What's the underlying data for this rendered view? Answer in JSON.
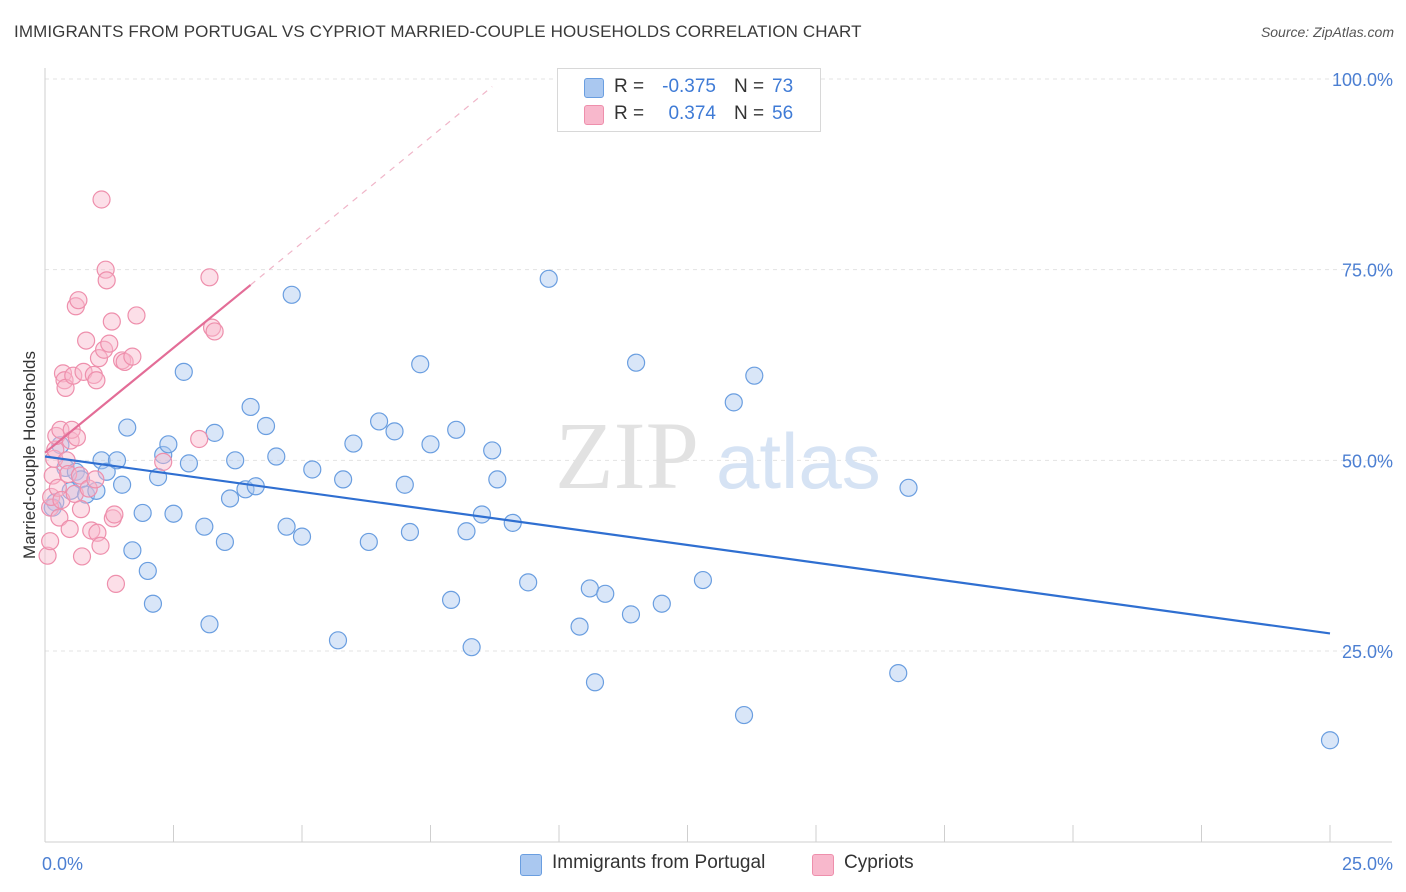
{
  "title": "IMMIGRANTS FROM PORTUGAL VS CYPRIOT MARRIED-COUPLE HOUSEHOLDS CORRELATION CHART",
  "source": "Source: ZipAtlas.com",
  "watermark": {
    "zip": "ZIP",
    "atlas": "atlas"
  },
  "legend": {
    "r_label": "R =",
    "n_label": "N =",
    "entries": [
      {
        "r": "-0.375",
        "n": "73",
        "color": "#aac8f0"
      },
      {
        "r": "0.374",
        "n": "56",
        "color": "#f8b8cc"
      }
    ]
  },
  "chart_data": {
    "type": "scatter",
    "title": "IMMIGRANTS FROM PORTUGAL VS CYPRIOT MARRIED-COUPLE HOUSEHOLDS CORRELATION CHART",
    "xlabel": "",
    "ylabel": "Married-couple Households",
    "xlim": [
      0,
      25
    ],
    "ylim": [
      0,
      105
    ],
    "x_tick_labels": [
      "0.0%",
      "25.0%"
    ],
    "y_tick_labels": [
      "100.0%",
      "75.0%",
      "50.0%",
      "25.0%"
    ],
    "y_tick_values": [
      100,
      75,
      50,
      25
    ],
    "colors": {
      "blue_fill": "#aac8f0",
      "blue_stroke": "#6a9ee0",
      "blue_line": "#2f6fd1",
      "pink_fill": "#f8b8cc",
      "pink_stroke": "#ee8fac",
      "pink_line": "#e36d97",
      "axis_text": "#4c7fd2"
    },
    "series": [
      {
        "name": "Immigrants from Portugal",
        "r": -0.375,
        "n": 73,
        "trend": {
          "x": [
            0.0,
            25.0
          ],
          "y": [
            50.5,
            27.3
          ],
          "dashed": false
        },
        "points": [
          [
            0.2,
            44.5
          ],
          [
            0.3,
            52.0
          ],
          [
            0.4,
            49.0
          ],
          [
            0.5,
            46.0
          ],
          [
            0.6,
            48.5
          ],
          [
            0.7,
            47.5
          ],
          [
            0.8,
            45.5
          ],
          [
            1.0,
            46.0
          ],
          [
            1.1,
            50.0
          ],
          [
            1.2,
            48.5
          ],
          [
            1.4,
            50.0
          ],
          [
            1.5,
            46.8
          ],
          [
            1.6,
            54.3
          ],
          [
            1.7,
            38.2
          ],
          [
            1.9,
            43.1
          ],
          [
            2.0,
            35.5
          ],
          [
            2.1,
            31.2
          ],
          [
            2.2,
            47.8
          ],
          [
            2.3,
            50.7
          ],
          [
            2.4,
            52.1
          ],
          [
            2.5,
            43.0
          ],
          [
            2.7,
            61.6
          ],
          [
            2.8,
            49.6
          ],
          [
            3.1,
            41.3
          ],
          [
            3.2,
            28.5
          ],
          [
            3.3,
            53.6
          ],
          [
            3.5,
            39.3
          ],
          [
            3.6,
            45.0
          ],
          [
            3.7,
            50.0
          ],
          [
            3.9,
            46.2
          ],
          [
            4.0,
            57.0
          ],
          [
            4.1,
            46.6
          ],
          [
            4.3,
            54.5
          ],
          [
            4.5,
            50.5
          ],
          [
            4.7,
            41.3
          ],
          [
            4.8,
            71.7
          ],
          [
            5.0,
            40.0
          ],
          [
            5.2,
            48.8
          ],
          [
            5.7,
            26.4
          ],
          [
            5.8,
            47.5
          ],
          [
            6.0,
            52.2
          ],
          [
            6.3,
            39.3
          ],
          [
            6.5,
            55.1
          ],
          [
            6.8,
            53.8
          ],
          [
            7.0,
            46.8
          ],
          [
            7.1,
            40.6
          ],
          [
            7.3,
            62.6
          ],
          [
            7.5,
            52.1
          ],
          [
            7.9,
            31.7
          ],
          [
            8.0,
            54.0
          ],
          [
            8.2,
            40.7
          ],
          [
            8.3,
            25.5
          ],
          [
            8.5,
            42.9
          ],
          [
            8.7,
            51.3
          ],
          [
            8.8,
            47.5
          ],
          [
            9.1,
            41.8
          ],
          [
            9.4,
            34.0
          ],
          [
            9.8,
            73.8
          ],
          [
            10.4,
            28.2
          ],
          [
            10.6,
            33.2
          ],
          [
            10.7,
            20.9
          ],
          [
            10.9,
            32.5
          ],
          [
            11.4,
            29.8
          ],
          [
            11.5,
            62.8
          ],
          [
            12.0,
            31.2
          ],
          [
            12.8,
            34.3
          ],
          [
            13.4,
            57.6
          ],
          [
            13.6,
            16.6
          ],
          [
            13.8,
            61.1
          ],
          [
            16.6,
            22.1
          ],
          [
            16.8,
            46.4
          ],
          [
            25.0,
            13.3
          ],
          [
            0.15,
            43.8
          ]
        ]
      },
      {
        "name": "Cypriots",
        "r": 0.374,
        "n": 56,
        "trend": {
          "x": [
            0.0,
            4.0
          ],
          "y": [
            51.0,
            73.0
          ],
          "dashed": false,
          "extension": {
            "x": [
              4.0,
              8.7
            ],
            "y": [
              73.0,
              99.0
            ],
            "dashed": true
          }
        },
        "points": [
          [
            0.05,
            37.5
          ],
          [
            0.1,
            39.4
          ],
          [
            0.1,
            43.8
          ],
          [
            0.12,
            45.2
          ],
          [
            0.15,
            48.0
          ],
          [
            0.18,
            50.2
          ],
          [
            0.2,
            51.4
          ],
          [
            0.22,
            53.2
          ],
          [
            0.25,
            46.4
          ],
          [
            0.28,
            42.5
          ],
          [
            0.3,
            54.0
          ],
          [
            0.32,
            44.8
          ],
          [
            0.35,
            61.4
          ],
          [
            0.38,
            60.5
          ],
          [
            0.4,
            59.5
          ],
          [
            0.42,
            50.0
          ],
          [
            0.45,
            48.2
          ],
          [
            0.48,
            41.0
          ],
          [
            0.5,
            52.6
          ],
          [
            0.52,
            54.0
          ],
          [
            0.55,
            61.1
          ],
          [
            0.58,
            45.6
          ],
          [
            0.6,
            70.2
          ],
          [
            0.62,
            53.0
          ],
          [
            0.65,
            71.0
          ],
          [
            0.68,
            48.0
          ],
          [
            0.7,
            43.6
          ],
          [
            0.72,
            37.4
          ],
          [
            0.75,
            61.6
          ],
          [
            0.8,
            65.7
          ],
          [
            0.85,
            46.3
          ],
          [
            0.9,
            40.8
          ],
          [
            0.95,
            61.2
          ],
          [
            0.98,
            47.5
          ],
          [
            1.0,
            60.5
          ],
          [
            1.02,
            40.5
          ],
          [
            1.05,
            63.4
          ],
          [
            1.08,
            38.8
          ],
          [
            1.1,
            84.2
          ],
          [
            1.15,
            64.5
          ],
          [
            1.18,
            75.0
          ],
          [
            1.2,
            73.6
          ],
          [
            1.25,
            65.3
          ],
          [
            1.3,
            68.2
          ],
          [
            1.32,
            42.4
          ],
          [
            1.35,
            42.9
          ],
          [
            1.38,
            33.8
          ],
          [
            1.5,
            63.1
          ],
          [
            1.55,
            62.9
          ],
          [
            1.7,
            63.6
          ],
          [
            1.78,
            69.0
          ],
          [
            2.3,
            49.8
          ],
          [
            3.0,
            52.8
          ],
          [
            3.2,
            74.0
          ],
          [
            3.25,
            67.4
          ],
          [
            3.3,
            66.9
          ]
        ]
      }
    ]
  },
  "bottom_legend": [
    {
      "label": "Immigrants from Portugal",
      "color": "#aac8f0"
    },
    {
      "label": "Cypriots",
      "color": "#f8b8cc"
    }
  ]
}
